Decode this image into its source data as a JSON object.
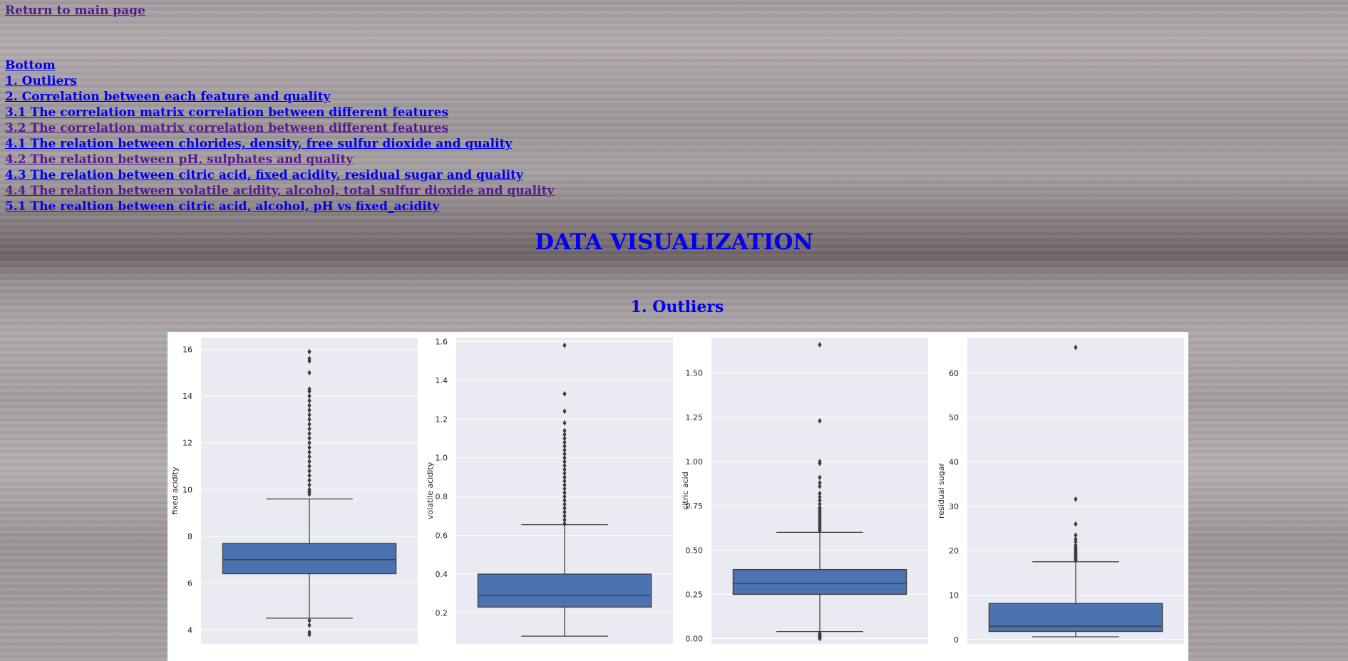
{
  "return_link": "Return to main page",
  "toc": [
    {
      "label": "Bottom",
      "visited": false
    },
    {
      "label": "1. Outliers",
      "visited": false
    },
    {
      "label": "2. Correlation between each feature and quality",
      "visited": false
    },
    {
      "label": "3.1 The correlation matrix correlation between different features",
      "visited": false
    },
    {
      "label": "3.2 The correlation matrix correlation between different features",
      "visited": true
    },
    {
      "label": "4.1 The relation between chlorides, density, free sulfur dioxide and quality",
      "visited": false
    },
    {
      "label": "4.2 The relation between pH, sulphates and quality",
      "visited": true
    },
    {
      "label": "4.3 The relation between citric acid, fixed acidity, residual sugar and quality",
      "visited": false
    },
    {
      "label": "4.4 The relation between volatile acidity, alcohol, total sulfur dioxide and quality",
      "visited": true
    },
    {
      "label": "5.1 The realtion between citric acid, alcohol, pH vs fixed_acidity",
      "visited": false
    }
  ],
  "page_title": "DATA VISUALIZATION",
  "section_heading": "1. Outliers",
  "colors": {
    "box_fill": "#4c72b0",
    "plot_bg": "#eaeaf2",
    "line": "#3d3d3d",
    "grid": "#ffffff"
  },
  "chart_data": [
    {
      "type": "box",
      "ylabel": "fixed acidity",
      "ylim": [
        3.4,
        16.5
      ],
      "yticks": [
        4,
        6,
        8,
        10,
        12,
        14,
        16
      ],
      "tick_labels": [
        "4",
        "6",
        "8",
        "10",
        "12",
        "14",
        "16"
      ],
      "whisker_low": 4.5,
      "q1": 6.4,
      "median": 7.0,
      "q3": 7.7,
      "whisker_high": 9.6,
      "outliers": [
        3.8,
        3.9,
        4.2,
        4.4,
        9.8,
        9.9,
        10.0,
        10.2,
        10.4,
        10.6,
        10.8,
        11.0,
        11.2,
        11.4,
        11.6,
        11.8,
        12.0,
        12.2,
        12.4,
        12.6,
        12.8,
        13.0,
        13.2,
        13.4,
        13.6,
        13.8,
        14.0,
        14.2,
        14.3,
        15.0,
        15.5,
        15.6,
        15.9
      ]
    },
    {
      "type": "box",
      "ylabel": "volatile acidity",
      "ylim": [
        0.04,
        1.62
      ],
      "yticks": [
        0.2,
        0.4,
        0.6,
        0.8,
        1.0,
        1.2,
        1.4,
        1.6
      ],
      "tick_labels": [
        "0.2",
        "0.4",
        "0.6",
        "0.8",
        "1.0",
        "1.2",
        "1.4",
        "1.6"
      ],
      "whisker_low": 0.08,
      "q1": 0.23,
      "median": 0.29,
      "q3": 0.4,
      "whisker_high": 0.655,
      "outliers": [
        0.66,
        0.68,
        0.7,
        0.72,
        0.74,
        0.76,
        0.78,
        0.8,
        0.82,
        0.84,
        0.86,
        0.88,
        0.9,
        0.92,
        0.94,
        0.96,
        0.98,
        1.0,
        1.02,
        1.04,
        1.06,
        1.08,
        1.1,
        1.12,
        1.14,
        1.18,
        1.24,
        1.33,
        1.58
      ]
    },
    {
      "type": "box",
      "ylabel": "citric acid",
      "ylim": [
        -0.03,
        1.7
      ],
      "yticks": [
        0.0,
        0.25,
        0.5,
        0.75,
        1.0,
        1.25,
        1.5
      ],
      "tick_labels": [
        "0.00",
        "0.25",
        "0.50",
        "0.75",
        "1.00",
        "1.25",
        "1.50"
      ],
      "whisker_low": 0.04,
      "q1": 0.25,
      "median": 0.31,
      "q3": 0.39,
      "whisker_high": 0.6,
      "outliers": [
        0.0,
        0.005,
        0.01,
        0.015,
        0.02,
        0.025,
        0.03,
        0.61,
        0.62,
        0.63,
        0.64,
        0.65,
        0.66,
        0.67,
        0.68,
        0.69,
        0.7,
        0.71,
        0.72,
        0.73,
        0.74,
        0.76,
        0.78,
        0.8,
        0.82,
        0.86,
        0.88,
        0.91,
        0.99,
        1.0,
        1.23,
        1.66
      ]
    },
    {
      "type": "box",
      "ylabel": "residual sugar",
      "ylim": [
        -1.0,
        68.0
      ],
      "yticks": [
        0,
        10,
        20,
        30,
        40,
        50,
        60
      ],
      "tick_labels": [
        "0",
        "10",
        "20",
        "30",
        "40",
        "50",
        "60"
      ],
      "whisker_low": 0.6,
      "q1": 1.8,
      "median": 3.0,
      "q3": 8.1,
      "whisker_high": 17.5,
      "outliers": [
        17.8,
        18.0,
        18.2,
        18.5,
        18.8,
        19.0,
        19.3,
        19.6,
        19.9,
        20.2,
        20.5,
        20.8,
        21.2,
        22.0,
        22.6,
        23.5,
        26.0,
        31.6,
        65.8
      ]
    }
  ]
}
